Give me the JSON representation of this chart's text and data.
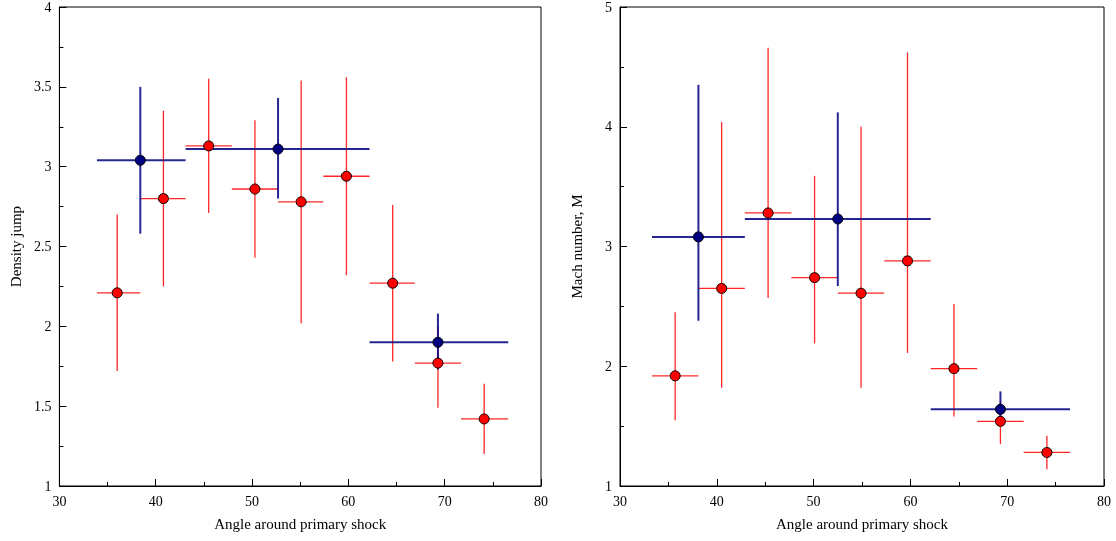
{
  "chart_data": [
    {
      "type": "scatter",
      "xlabel": "Angle around primary shock",
      "ylabel": "Density jump",
      "xlim": [
        30,
        80
      ],
      "xticks": [
        30,
        40,
        50,
        60,
        70,
        80
      ],
      "ylim": [
        1,
        4
      ],
      "yticks": [
        1,
        1.5,
        2,
        2.5,
        3,
        3.5,
        4
      ],
      "marker": "circle",
      "series": [
        {
          "color": "#ff0000",
          "x": [
            36.0,
            40.8,
            45.5,
            50.3,
            55.1,
            59.8,
            64.6,
            69.3,
            74.1
          ],
          "values": [
            2.21,
            2.8,
            3.13,
            2.86,
            2.78,
            2.94,
            2.27,
            1.77,
            1.42
          ],
          "errors": [
            [
              1.72,
              2.7
            ],
            [
              2.25,
              3.35
            ],
            [
              2.71,
              3.55
            ],
            [
              2.43,
              3.29
            ],
            [
              2.02,
              3.54
            ],
            [
              2.32,
              3.56
            ],
            [
              1.78,
              2.76
            ],
            [
              1.49,
              2.0
            ],
            [
              1.2,
              1.64
            ]
          ],
          "xerrors": [
            [
              33.9,
              38.4
            ],
            [
              38.4,
              43.1
            ],
            [
              43.1,
              47.9
            ],
            [
              47.9,
              52.7
            ],
            [
              52.7,
              57.4
            ],
            [
              57.4,
              62.2
            ],
            [
              62.2,
              66.9
            ],
            [
              66.9,
              71.7
            ],
            [
              71.7,
              76.6
            ]
          ]
        },
        {
          "color": "#000080",
          "x": [
            38.4,
            52.7,
            69.3
          ],
          "values": [
            3.04,
            3.11,
            1.9
          ],
          "errors": [
            [
              2.58,
              3.5
            ],
            [
              2.8,
              3.43
            ],
            [
              1.73,
              2.08
            ]
          ],
          "xerrors": [
            [
              33.9,
              43.1
            ],
            [
              43.1,
              62.2
            ],
            [
              62.2,
              76.6
            ]
          ]
        }
      ]
    },
    {
      "type": "scatter",
      "xlabel": "Angle around primary shock",
      "ylabel": "Mach number, M",
      "xlim": [
        30,
        80
      ],
      "xticks": [
        30,
        40,
        50,
        60,
        70,
        80
      ],
      "ylim": [
        1,
        5
      ],
      "yticks": [
        1,
        2,
        3,
        4,
        5
      ],
      "marker": "circle",
      "series": [
        {
          "color": "#ff0000",
          "x": [
            35.7,
            40.5,
            45.3,
            50.1,
            54.9,
            59.7,
            64.5,
            69.3,
            74.1
          ],
          "values": [
            1.92,
            2.65,
            3.28,
            2.74,
            2.61,
            2.88,
            1.98,
            1.54,
            1.28
          ],
          "errors": [
            [
              1.55,
              2.45
            ],
            [
              1.82,
              4.04
            ],
            [
              2.57,
              4.66
            ],
            [
              2.19,
              3.59
            ],
            [
              1.82,
              4.0
            ],
            [
              2.11,
              4.62
            ],
            [
              1.58,
              2.52
            ],
            [
              1.35,
              1.7
            ],
            [
              1.14,
              1.42
            ]
          ],
          "xerrors": [
            [
              33.3,
              38.1
            ],
            [
              38.1,
              42.9
            ],
            [
              42.9,
              47.7
            ],
            [
              47.7,
              52.5
            ],
            [
              52.5,
              57.3
            ],
            [
              57.3,
              62.1
            ],
            [
              62.1,
              66.9
            ],
            [
              66.9,
              71.7
            ],
            [
              71.7,
              76.5
            ]
          ]
        },
        {
          "color": "#000080",
          "x": [
            38.1,
            52.5,
            69.3
          ],
          "values": [
            3.08,
            3.23,
            1.64
          ],
          "errors": [
            [
              2.38,
              4.35
            ],
            [
              2.67,
              4.12
            ],
            [
              1.55,
              1.79
            ]
          ],
          "xerrors": [
            [
              33.3,
              42.9
            ],
            [
              42.9,
              62.1
            ],
            [
              62.1,
              76.5
            ]
          ]
        }
      ]
    }
  ]
}
